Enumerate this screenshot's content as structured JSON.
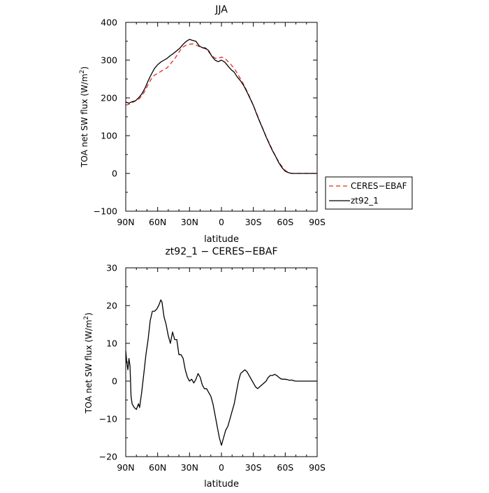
{
  "chart_data": [
    {
      "type": "line",
      "title": "JJA",
      "xlabel": "latitude",
      "ylabel_main": "TOA net SW flux (W/m",
      "ylabel_sup": "2",
      "ylabel_close": ")",
      "xlim": [
        90,
        -90
      ],
      "ylim": [
        -100,
        400
      ],
      "xticks": [
        90,
        60,
        30,
        0,
        -30,
        -60,
        -90
      ],
      "xtick_labels": [
        "90N",
        "60N",
        "30N",
        "0",
        "30S",
        "60S",
        "90S"
      ],
      "yticks": [
        -100,
        0,
        100,
        200,
        300,
        400
      ],
      "ytick_labels": [
        "−100",
        "0",
        "100",
        "200",
        "300",
        "400"
      ],
      "legend": {
        "position": "right",
        "entries": [
          "CERES−EBAF",
          "zt92_1"
        ]
      },
      "series": [
        {
          "name": "CERES−EBAF",
          "color": "#e8281e",
          "dash": "dashed",
          "points": [
            [
              90,
              181
            ],
            [
              87,
              183
            ],
            [
              84,
              187
            ],
            [
              81,
              192
            ],
            [
              78,
              196
            ],
            [
              75,
              205
            ],
            [
              72,
              218
            ],
            [
              69,
              235
            ],
            [
              66,
              250
            ],
            [
              63,
              260
            ],
            [
              60,
              265
            ],
            [
              57,
              270
            ],
            [
              54,
              275
            ],
            [
              51,
              280
            ],
            [
              48,
              290
            ],
            [
              45,
              300
            ],
            [
              42,
              312
            ],
            [
              39,
              325
            ],
            [
              36,
              335
            ],
            [
              33,
              340
            ],
            [
              30,
              342
            ],
            [
              27,
              343
            ],
            [
              24,
              340
            ],
            [
              21,
              336
            ],
            [
              18,
              333
            ],
            [
              15,
              330
            ],
            [
              12,
              322
            ],
            [
              9,
              312
            ],
            [
              6,
              305
            ],
            [
              3,
              305
            ],
            [
              0,
              308
            ],
            [
              -3,
              305
            ],
            [
              -6,
              297
            ],
            [
              -9,
              288
            ],
            [
              -12,
              278
            ],
            [
              -15,
              265
            ],
            [
              -18,
              250
            ],
            [
              -21,
              235
            ],
            [
              -24,
              218
            ],
            [
              -27,
              200
            ],
            [
              -30,
              180
            ],
            [
              -33,
              160
            ],
            [
              -36,
              138
            ],
            [
              -39,
              118
            ],
            [
              -42,
              98
            ],
            [
              -45,
              80
            ],
            [
              -48,
              62
            ],
            [
              -51,
              45
            ],
            [
              -54,
              30
            ],
            [
              -57,
              18
            ],
            [
              -60,
              8
            ],
            [
              -63,
              2
            ],
            [
              -66,
              0
            ],
            [
              -70,
              0
            ],
            [
              -75,
              0
            ],
            [
              -80,
              0
            ],
            [
              -85,
              0
            ],
            [
              -90,
              0
            ]
          ]
        },
        {
          "name": "zt92_1",
          "color": "#000000",
          "dash": "solid",
          "points": [
            [
              90,
              189
            ],
            [
              87,
              186
            ],
            [
              84,
              190
            ],
            [
              81,
              192
            ],
            [
              78,
              200
            ],
            [
              75,
              210
            ],
            [
              72,
              225
            ],
            [
              69,
              245
            ],
            [
              66,
              262
            ],
            [
              63,
              278
            ],
            [
              60,
              288
            ],
            [
              57,
              295
            ],
            [
              54,
              300
            ],
            [
              51,
              305
            ],
            [
              48,
              312
            ],
            [
              45,
              318
            ],
            [
              42,
              325
            ],
            [
              39,
              332
            ],
            [
              36,
              342
            ],
            [
              33,
              350
            ],
            [
              30,
              355
            ],
            [
              27,
              352
            ],
            [
              24,
              350
            ],
            [
              21,
              338
            ],
            [
              18,
              333
            ],
            [
              15,
              332
            ],
            [
              12,
              325
            ],
            [
              9,
              310
            ],
            [
              6,
              300
            ],
            [
              3,
              296
            ],
            [
              0,
              300
            ],
            [
              -3,
              295
            ],
            [
              -6,
              285
            ],
            [
              -9,
              275
            ],
            [
              -12,
              268
            ],
            [
              -15,
              255
            ],
            [
              -18,
              245
            ],
            [
              -21,
              232
            ],
            [
              -24,
              216
            ],
            [
              -27,
              198
            ],
            [
              -30,
              180
            ],
            [
              -33,
              158
            ],
            [
              -36,
              137
            ],
            [
              -39,
              117
            ],
            [
              -42,
              97
            ],
            [
              -45,
              78
            ],
            [
              -48,
              60
            ],
            [
              -51,
              45
            ],
            [
              -54,
              28
            ],
            [
              -57,
              15
            ],
            [
              -60,
              6
            ],
            [
              -63,
              2
            ],
            [
              -66,
              0
            ],
            [
              -70,
              0
            ],
            [
              -75,
              0
            ],
            [
              -80,
              0
            ],
            [
              -85,
              0
            ],
            [
              -90,
              0
            ]
          ]
        }
      ]
    },
    {
      "type": "line",
      "title": "zt92_1  −  CERES−EBAF",
      "xlabel": "latitude",
      "ylabel_main": "TOA net SW flux (W/m",
      "ylabel_sup": "2",
      "ylabel_close": ")",
      "xlim": [
        90,
        -90
      ],
      "ylim": [
        -20,
        30
      ],
      "xticks": [
        90,
        60,
        30,
        0,
        -30,
        -60,
        -90
      ],
      "xtick_labels": [
        "90N",
        "60N",
        "30N",
        "0",
        "30S",
        "60S",
        "90S"
      ],
      "yticks": [
        -20,
        -10,
        0,
        10,
        20,
        30
      ],
      "ytick_labels": [
        "−20",
        "−10",
        "0",
        "10",
        "20",
        "30"
      ],
      "series": [
        {
          "color": "#000000",
          "dash": "solid",
          "points": [
            [
              90,
              8
            ],
            [
              89,
              5
            ],
            [
              88,
              3
            ],
            [
              87,
              6
            ],
            [
              86,
              4
            ],
            [
              85,
              -4
            ],
            [
              84,
              -6
            ],
            [
              82,
              -7
            ],
            [
              80,
              -7.5
            ],
            [
              78,
              -6
            ],
            [
              77,
              -7
            ],
            [
              75,
              -3
            ],
            [
              73,
              2
            ],
            [
              71,
              7
            ],
            [
              69,
              11
            ],
            [
              67,
              16
            ],
            [
              65,
              18.5
            ],
            [
              63,
              18.5
            ],
            [
              61,
              19
            ],
            [
              59,
              20
            ],
            [
              57,
              21.5
            ],
            [
              56,
              21
            ],
            [
              54,
              17
            ],
            [
              52,
              15
            ],
            [
              50,
              12
            ],
            [
              48,
              10
            ],
            [
              46,
              13
            ],
            [
              44,
              11
            ],
            [
              42,
              11
            ],
            [
              40,
              7
            ],
            [
              38,
              7
            ],
            [
              36,
              6
            ],
            [
              34,
              3
            ],
            [
              32,
              1
            ],
            [
              30,
              0
            ],
            [
              28,
              0.5
            ],
            [
              26,
              -0.5
            ],
            [
              24,
              0.5
            ],
            [
              22,
              2
            ],
            [
              20,
              1
            ],
            [
              18,
              -1
            ],
            [
              16,
              -2
            ],
            [
              14,
              -2
            ],
            [
              12,
              -3
            ],
            [
              10,
              -4
            ],
            [
              8,
              -6
            ],
            [
              6,
              -9
            ],
            [
              4,
              -12
            ],
            [
              2,
              -15
            ],
            [
              0,
              -17
            ],
            [
              -2,
              -15
            ],
            [
              -4,
              -13
            ],
            [
              -6,
              -12
            ],
            [
              -8,
              -10
            ],
            [
              -10,
              -8
            ],
            [
              -12,
              -6
            ],
            [
              -14,
              -3
            ],
            [
              -16,
              0
            ],
            [
              -18,
              2
            ],
            [
              -20,
              2.5
            ],
            [
              -22,
              3
            ],
            [
              -24,
              2.5
            ],
            [
              -26,
              1.5
            ],
            [
              -28,
              0.5
            ],
            [
              -30,
              -0.5
            ],
            [
              -32,
              -1.5
            ],
            [
              -34,
              -2
            ],
            [
              -36,
              -1.5
            ],
            [
              -38,
              -1
            ],
            [
              -40,
              -0.5
            ],
            [
              -42,
              0
            ],
            [
              -44,
              1
            ],
            [
              -46,
              1.5
            ],
            [
              -48,
              1.5
            ],
            [
              -50,
              1.8
            ],
            [
              -52,
              1.5
            ],
            [
              -54,
              1
            ],
            [
              -56,
              0.6
            ],
            [
              -58,
              0.5
            ],
            [
              -60,
              0.5
            ],
            [
              -62,
              0.4
            ],
            [
              -64,
              0.2
            ],
            [
              -66,
              0.3
            ],
            [
              -68,
              0.1
            ],
            [
              -70,
              0
            ],
            [
              -75,
              0
            ],
            [
              -80,
              0
            ],
            [
              -85,
              0
            ],
            [
              -90,
              0
            ]
          ]
        }
      ]
    }
  ]
}
